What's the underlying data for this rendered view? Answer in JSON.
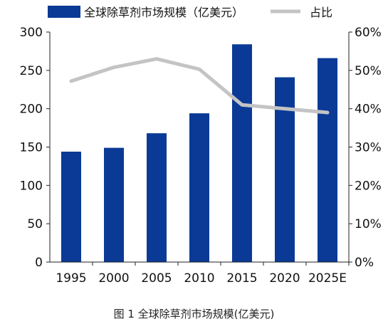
{
  "caption": "图 1 全球除草剂市场规模(亿美元)",
  "colors": {
    "bar": "#0a3a96",
    "line": "#c4c4c4",
    "axis": "#222222",
    "text": "#111111"
  },
  "chart_data": {
    "type": "bar",
    "categories": [
      "1995",
      "2000",
      "2005",
      "2010",
      "2015",
      "2020",
      "2025E"
    ],
    "series": [
      {
        "name": "全球除草剂市场规模（亿美元）",
        "type": "bar",
        "axis": "left",
        "values": [
          144,
          149,
          168,
          194,
          284,
          241,
          266
        ]
      },
      {
        "name": "占比",
        "type": "line",
        "axis": "right",
        "values": [
          47.2,
          50.8,
          53.0,
          50.3,
          41.0,
          40.0,
          39.0
        ]
      }
    ],
    "ylim": [
      0,
      300
    ],
    "y_ticks": [
      0,
      50,
      100,
      150,
      200,
      250,
      300
    ],
    "y2lim": [
      0,
      60
    ],
    "y2_ticks": [
      "0%",
      "10%",
      "20%",
      "30%",
      "40%",
      "50%",
      "60%"
    ],
    "legend_position": "top",
    "grid": false
  }
}
